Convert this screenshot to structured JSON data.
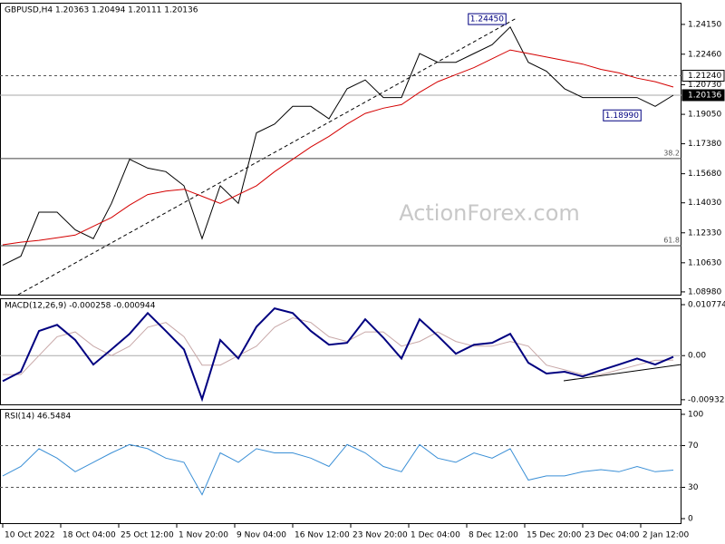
{
  "chart_data": [
    {
      "type": "line",
      "title": "GBPUSD,H4 1.20363 1.20494 1.20111 1.20136",
      "watermark": "ActionForex.com",
      "x": [
        0,
        1,
        2,
        3,
        4,
        5,
        6,
        7,
        8,
        9,
        10,
        11,
        12,
        13,
        14,
        15,
        16,
        17,
        18,
        19,
        20,
        21,
        22,
        23,
        24,
        25,
        26,
        27,
        28,
        29,
        30,
        31,
        32,
        33,
        34,
        35,
        36,
        37
      ],
      "xlim": [
        -0.15,
        37.45
      ],
      "ylim": [
        1.0877,
        1.2538
      ],
      "yticks": [
        {
          "value": 1.2415,
          "label": "1.24150"
        },
        {
          "value": 1.2246,
          "label": "1.22460"
        },
        {
          "value": 1.2073,
          "label": "1.20730"
        },
        {
          "value": 1.1905,
          "label": "1.19050"
        },
        {
          "value": 1.1738,
          "label": "1.17380"
        },
        {
          "value": 1.1568,
          "label": "1.15680"
        },
        {
          "value": 1.1403,
          "label": "1.14030"
        },
        {
          "value": 1.1233,
          "label": "1.12330"
        },
        {
          "value": 1.1063,
          "label": "1.10630"
        },
        {
          "value": 1.0898,
          "label": "1.08980"
        }
      ],
      "series": [
        {
          "color": "#000000",
          "values": [
            1.105,
            1.11,
            1.135,
            1.135,
            1.125,
            1.12,
            1.14,
            1.165,
            1.16,
            1.158,
            1.15,
            1.12,
            1.15,
            1.14,
            1.18,
            1.185,
            1.195,
            1.195,
            1.188,
            1.205,
            1.21,
            1.2,
            1.2,
            1.225,
            1.22,
            1.22,
            1.225,
            1.23,
            1.24,
            1.22,
            1.215,
            1.205,
            1.2,
            1.2,
            1.2,
            1.2,
            1.195,
            1.20136
          ]
        },
        {
          "color": "#d40000",
          "values": [
            1.1165,
            1.118,
            1.119,
            1.1205,
            1.122,
            1.127,
            1.132,
            1.139,
            1.145,
            1.147,
            1.148,
            1.144,
            1.14,
            1.145,
            1.15,
            1.158,
            1.165,
            1.172,
            1.178,
            1.185,
            1.191,
            1.194,
            1.196,
            1.203,
            1.209,
            1.213,
            1.217,
            1.222,
            1.227,
            1.225,
            1.223,
            1.221,
            1.219,
            1.216,
            1.214,
            1.211,
            1.209,
            1.206
          ]
        }
      ],
      "levels": [
        {
          "value": 1.2124,
          "label": "1.21240",
          "line_style": "dotted",
          "box": "white"
        },
        {
          "value": 1.20136,
          "label": "1.20136",
          "line_style": "solid",
          "box": "black"
        }
      ],
      "fib_levels": [
        {
          "value": 1.1654,
          "label": "38.2"
        },
        {
          "value": 1.116,
          "label": "61.8"
        }
      ],
      "annotations": [
        {
          "x": 27.85,
          "y": 1.2445,
          "label": "1.24450"
        },
        {
          "x": 35.3,
          "y": 1.1899,
          "label": "1.18990"
        }
      ]
    },
    {
      "type": "line",
      "title": "MACD(12,26,9) -0.000258 -0.000944",
      "x": [
        0,
        1,
        2,
        3,
        4,
        5,
        6,
        7,
        8,
        9,
        10,
        11,
        12,
        13,
        14,
        15,
        16,
        17,
        18,
        19,
        20,
        21,
        22,
        23,
        24,
        25,
        26,
        27,
        28,
        29,
        30,
        31,
        32,
        33,
        34,
        35,
        36,
        37
      ],
      "xlim": [
        -0.15,
        37.45
      ],
      "ylim": [
        -0.0105,
        0.01212
      ],
      "yticks": [
        0.010774,
        {
          "value": 0,
          "label": "0.00"
        },
        -0.009328
      ],
      "series": [
        {
          "color": "#c8a8a8",
          "values": [
            -0.004,
            -0.004,
            0,
            0.004,
            0.005,
            0.002,
            0,
            0.002,
            0.006,
            0.007,
            0.004,
            -0.002,
            -0.002,
            0,
            0.002,
            0.006,
            0.008,
            0.007,
            0.004,
            0.003,
            0.005,
            0.005,
            0.002,
            0.003,
            0.005,
            0.003,
            0.002,
            0.002,
            0.003,
            0.002,
            -0.002,
            -0.003,
            -0.004,
            -0.004,
            -0.003,
            -0.002,
            -0.001,
            -0.000944
          ]
        },
        {
          "color": "#000080",
          "values": [
            -0.0054,
            -0.0034,
            0.0052,
            0.0065,
            0.0033,
            -0.0019,
            0.0013,
            0.0046,
            0.009,
            0.0052,
            0.0013,
            -0.0092,
            0.0033,
            -0.0006,
            0.0061,
            0.01,
            0.009,
            0.0052,
            0.0023,
            0.0027,
            0.0077,
            0.0038,
            -0.0006,
            0.0077,
            0.0042,
            0.0004,
            0.0023,
            0.0027,
            0.0046,
            -0.0015,
            -0.0038,
            -0.0034,
            -0.0044,
            -0.0031,
            -0.0019,
            -0.0006,
            -0.0019,
            -0.000258
          ]
        }
      ],
      "levels": [
        {
          "value": 0,
          "line_style": "solid"
        }
      ]
    },
    {
      "type": "line",
      "title": "RSI(14) 46.5484",
      "x": [
        0,
        1,
        2,
        3,
        4,
        5,
        6,
        7,
        8,
        9,
        10,
        11,
        12,
        13,
        14,
        15,
        16,
        17,
        18,
        19,
        20,
        21,
        22,
        23,
        24,
        25,
        26,
        27,
        28,
        29,
        30,
        31,
        32,
        33,
        34,
        35,
        36,
        37
      ],
      "xlim": [
        -0.15,
        37.45
      ],
      "ylim": [
        -5.2,
        105.2
      ],
      "yticks": [
        100,
        70,
        30,
        0
      ],
      "xticks": [
        {
          "value": 0,
          "label": "10 Oct 2022"
        },
        {
          "value": 3.2,
          "label": "18 Oct 04:00"
        },
        {
          "value": 6.4,
          "label": "25 Oct 12:00"
        },
        {
          "value": 9.6,
          "label": "1 Nov 20:00"
        },
        {
          "value": 12.8,
          "label": "9 Nov 04:00"
        },
        {
          "value": 16,
          "label": "16 Nov 12:00"
        },
        {
          "value": 19.2,
          "label": "23 Nov 20:00"
        },
        {
          "value": 22.4,
          "label": "1 Dec 04:00"
        },
        {
          "value": 25.6,
          "label": "8 Dec 12:00"
        },
        {
          "value": 28.8,
          "label": "15 Dec 20:00"
        },
        {
          "value": 32,
          "label": "23 Dec 04:00"
        },
        {
          "value": 35.2,
          "label": "2 Jan 12:00"
        }
      ],
      "series": [
        {
          "color": "#3a8fd6",
          "values": [
            41,
            50,
            67,
            58,
            45,
            54,
            63,
            71,
            67,
            58,
            54,
            23,
            63,
            54,
            67,
            63,
            63,
            58,
            50,
            71,
            63,
            50,
            45,
            71,
            58,
            54,
            63,
            58,
            67,
            37,
            41,
            41,
            45,
            47,
            45,
            50,
            45,
            46.5484
          ]
        }
      ],
      "levels": [
        {
          "value": 70,
          "line_style": "dotted"
        },
        {
          "value": 30,
          "line_style": "dotted"
        }
      ]
    }
  ]
}
